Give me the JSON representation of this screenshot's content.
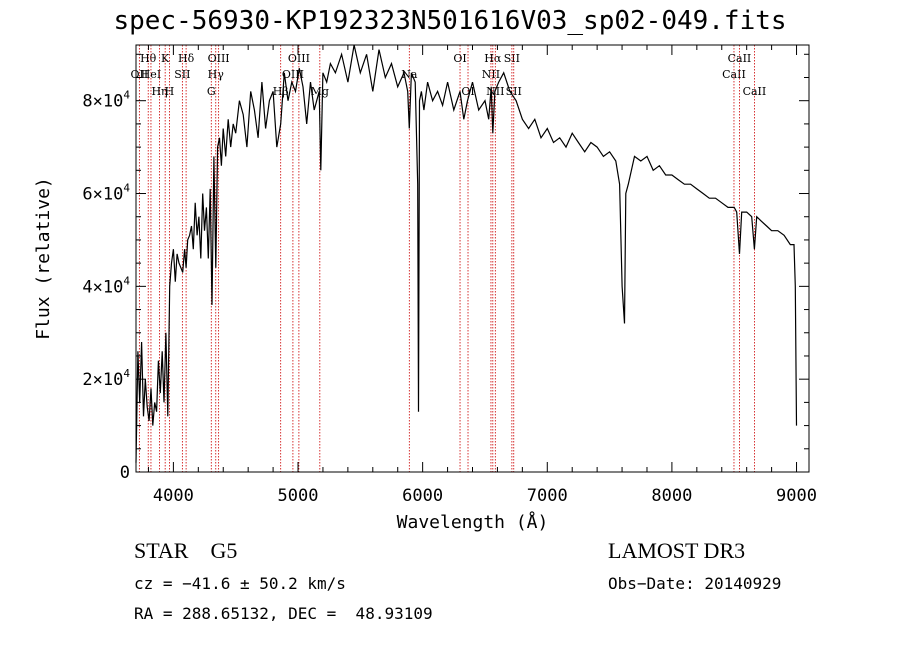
{
  "chart_data": {
    "type": "line",
    "title": "spec-56930-KP192323N501616V03_sp02-049.fits",
    "xlabel": "Wavelength (Å)",
    "ylabel": "Flux (relative)",
    "xlim": [
      3700,
      9100
    ],
    "ylim": [
      0,
      92000
    ],
    "x_ticks": [
      4000,
      5000,
      6000,
      7000,
      8000,
      9000
    ],
    "x_tick_labels": [
      "4000",
      "5000",
      "6000",
      "7000",
      "8000",
      "9000"
    ],
    "y_ticks": [
      0,
      20000,
      40000,
      60000,
      80000
    ],
    "y_tick_labels": [
      {
        "mantissa": "0",
        "exp": ""
      },
      {
        "mantissa": "2×10",
        "exp": "4"
      },
      {
        "mantissa": "4×10",
        "exp": "4"
      },
      {
        "mantissa": "6×10",
        "exp": "4"
      },
      {
        "mantissa": "8×10",
        "exp": "4"
      }
    ],
    "series": [
      {
        "name": "spectrum",
        "x": [
          3700,
          3715,
          3730,
          3745,
          3760,
          3775,
          3790,
          3805,
          3820,
          3835,
          3850,
          3865,
          3880,
          3895,
          3910,
          3925,
          3940,
          3955,
          3970,
          3985,
          4000,
          4015,
          4030,
          4045,
          4060,
          4075,
          4090,
          4102,
          4115,
          4130,
          4145,
          4160,
          4175,
          4190,
          4205,
          4220,
          4235,
          4250,
          4265,
          4280,
          4295,
          4310,
          4325,
          4340,
          4355,
          4370,
          4385,
          4400,
          4420,
          4440,
          4460,
          4480,
          4500,
          4530,
          4560,
          4590,
          4620,
          4650,
          4680,
          4710,
          4740,
          4770,
          4800,
          4830,
          4861,
          4890,
          4920,
          4950,
          4980,
          5010,
          5040,
          5070,
          5100,
          5130,
          5150,
          5170,
          5183,
          5200,
          5230,
          5260,
          5300,
          5350,
          5400,
          5450,
          5500,
          5550,
          5600,
          5650,
          5700,
          5750,
          5800,
          5850,
          5880,
          5893,
          5910,
          5940,
          5960,
          5967,
          5975,
          5990,
          6010,
          6040,
          6080,
          6120,
          6160,
          6200,
          6250,
          6300,
          6330,
          6360,
          6400,
          6450,
          6500,
          6530,
          6550,
          6563,
          6580,
          6610,
          6650,
          6700,
          6750,
          6800,
          6850,
          6900,
          6950,
          7000,
          7050,
          7100,
          7150,
          7200,
          7250,
          7300,
          7350,
          7400,
          7450,
          7500,
          7550,
          7580,
          7600,
          7620,
          7630,
          7650,
          7700,
          7750,
          7800,
          7850,
          7900,
          7950,
          8000,
          8050,
          8100,
          8150,
          8200,
          8250,
          8300,
          8350,
          8400,
          8450,
          8500,
          8520,
          8542,
          8560,
          8600,
          8640,
          8662,
          8680,
          8720,
          8760,
          8800,
          8850,
          8900,
          8950,
          8980,
          8990,
          9000
        ],
        "y": [
          2000,
          26000,
          15000,
          28000,
          12000,
          20000,
          14000,
          11000,
          18000,
          10000,
          15000,
          13000,
          24000,
          17000,
          26000,
          15000,
          30000,
          12000,
          40000,
          45000,
          48000,
          41000,
          47000,
          45000,
          44000,
          43000,
          48000,
          44000,
          50000,
          51000,
          53000,
          48000,
          58000,
          51000,
          55000,
          46000,
          60000,
          52000,
          57000,
          46000,
          61000,
          36000,
          68000,
          44000,
          70000,
          72000,
          66000,
          74000,
          68000,
          76000,
          70000,
          75000,
          73000,
          80000,
          77000,
          70000,
          82000,
          78000,
          72000,
          84000,
          74000,
          80000,
          82000,
          70000,
          75000,
          86000,
          80000,
          84000,
          82000,
          87000,
          83000,
          75000,
          84000,
          78000,
          80000,
          82000,
          65000,
          86000,
          84000,
          88000,
          86000,
          90000,
          84000,
          92000,
          86000,
          90000,
          82000,
          91000,
          85000,
          88000,
          83000,
          86000,
          82000,
          74000,
          86000,
          84000,
          62000,
          13000,
          80000,
          82000,
          78000,
          84000,
          80000,
          82000,
          79000,
          84000,
          78000,
          82000,
          76000,
          80000,
          84000,
          78000,
          80000,
          76000,
          83000,
          73000,
          82000,
          84000,
          86000,
          82000,
          80000,
          76000,
          74000,
          76000,
          72000,
          74000,
          71000,
          72000,
          70000,
          73000,
          71000,
          69000,
          71000,
          70000,
          68000,
          69000,
          67000,
          62000,
          40000,
          32000,
          60000,
          62000,
          68000,
          67000,
          68000,
          65000,
          66000,
          64000,
          64000,
          63000,
          62000,
          62000,
          61000,
          60000,
          59000,
          59000,
          58000,
          57000,
          57000,
          56000,
          47000,
          56000,
          56000,
          55000,
          48000,
          55000,
          54000,
          53000,
          52000,
          52000,
          51000,
          49000,
          49000,
          40000,
          10000
        ]
      }
    ],
    "lines": [
      {
        "wave": 3727,
        "label": "OII",
        "row": 1
      },
      {
        "wave": 3798,
        "label": "Hθ",
        "row": 0
      },
      {
        "wave": 3820,
        "label": "HeI",
        "row": 1
      },
      {
        "wave": 3889,
        "label": "Hη",
        "row": 2
      },
      {
        "wave": 3934,
        "label": "K",
        "row": 0
      },
      {
        "wave": 3968,
        "label": "H",
        "row": 2
      },
      {
        "wave": 4072,
        "label": "SII",
        "row": 1
      },
      {
        "wave": 4102,
        "label": "Hδ",
        "row": 0
      },
      {
        "wave": 4304,
        "label": "G",
        "row": 2
      },
      {
        "wave": 4340,
        "label": "Hγ",
        "row": 1
      },
      {
        "wave": 4363,
        "label": "OIII",
        "row": 0
      },
      {
        "wave": 4861,
        "label": "Hβ",
        "row": 2
      },
      {
        "wave": 4959,
        "label": "OIII",
        "row": 1
      },
      {
        "wave": 5007,
        "label": "OIII",
        "row": 0
      },
      {
        "wave": 5175,
        "label": "Mg",
        "row": 2
      },
      {
        "wave": 5893,
        "label": "Na",
        "row": 1
      },
      {
        "wave": 6300,
        "label": "OI",
        "row": 0
      },
      {
        "wave": 6364,
        "label": "OI",
        "row": 2
      },
      {
        "wave": 6548,
        "label": "NII",
        "row": 1
      },
      {
        "wave": 6563,
        "label": "Hα",
        "row": 0
      },
      {
        "wave": 6583,
        "label": "NII",
        "row": 2
      },
      {
        "wave": 6716,
        "label": "SII",
        "row": 0
      },
      {
        "wave": 6731,
        "label": "SII",
        "row": 2
      },
      {
        "wave": 8498,
        "label": "CaII",
        "row": 1
      },
      {
        "wave": 8542,
        "label": "CaII",
        "row": 0
      },
      {
        "wave": 8662,
        "label": "CaII",
        "row": 2
      }
    ]
  },
  "info": {
    "class_label": "STAR",
    "subclass": "G5",
    "survey": "LAMOST DR3",
    "cz": "cz = −41.6 ± 50.2 km/s",
    "obs_date": "Obs−Date: 20140929",
    "radec": "RA = 288.65132, DEC =  48.93109"
  },
  "colors": {
    "axis": "#000000",
    "spectrum": "#000000",
    "lines": "#cc0000"
  }
}
